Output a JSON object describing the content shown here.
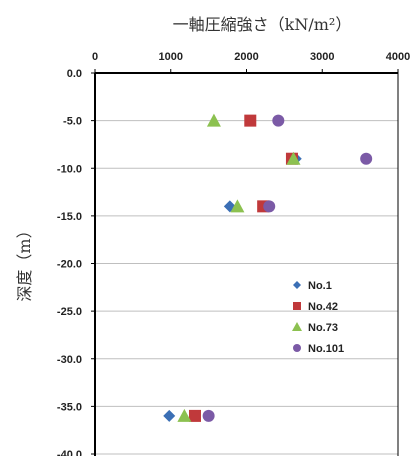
{
  "chart_data": {
    "type": "scatter",
    "title": "一軸圧縮強さ（kN/m²）",
    "xlabel": "",
    "ylabel": "深度（m）",
    "x_axis_position": "top",
    "xlim": [
      0,
      4000
    ],
    "ylim": [
      -40,
      0
    ],
    "xticks": [
      "0",
      "1000",
      "2000",
      "3000",
      "4000"
    ],
    "yticks": [
      "0.0",
      "-5.0",
      "-10.0",
      "-15.0",
      "-20.0",
      "-25.0",
      "-30.0",
      "-35.0",
      "-40.0"
    ],
    "grid": "horizontal",
    "legend_position": "right-middle",
    "series": [
      {
        "name": "No.1",
        "marker": "diamond",
        "color": "#3b6fb5",
        "points": [
          {
            "x": 2650,
            "y": -9.0
          },
          {
            "x": 1780,
            "y": -14.0
          },
          {
            "x": 980,
            "y": -36.0
          }
        ]
      },
      {
        "name": "No.42",
        "marker": "square",
        "color": "#c0393b",
        "points": [
          {
            "x": 2050,
            "y": -5.0
          },
          {
            "x": 2600,
            "y": -9.0
          },
          {
            "x": 2220,
            "y": -14.0
          },
          {
            "x": 1320,
            "y": -36.0
          }
        ]
      },
      {
        "name": "No.73",
        "marker": "triangle",
        "color": "#8cc150",
        "points": [
          {
            "x": 1570,
            "y": -5.0
          },
          {
            "x": 2620,
            "y": -9.0
          },
          {
            "x": 1880,
            "y": -14.0
          },
          {
            "x": 1180,
            "y": -36.0
          }
        ]
      },
      {
        "name": "No.101",
        "marker": "circle",
        "color": "#7b5aa6",
        "points": [
          {
            "x": 2420,
            "y": -5.0
          },
          {
            "x": 3580,
            "y": -9.0
          },
          {
            "x": 2300,
            "y": -14.0
          },
          {
            "x": 1500,
            "y": -36.0
          }
        ]
      }
    ]
  }
}
